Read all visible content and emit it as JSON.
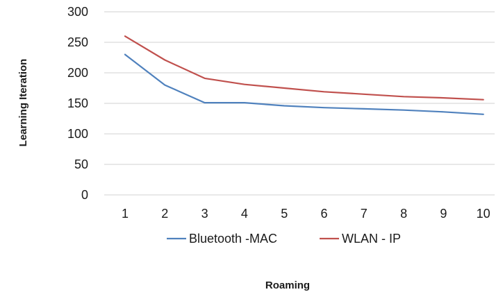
{
  "chart_data": {
    "type": "line",
    "title": "",
    "xlabel": "Roaming",
    "ylabel": "Learning Iteration",
    "x": [
      1,
      2,
      3,
      4,
      5,
      6,
      7,
      8,
      9,
      10
    ],
    "ylim": [
      0,
      300
    ],
    "yticks": [
      0,
      50,
      100,
      150,
      200,
      250,
      300
    ],
    "grid": "horizontal",
    "legend_position": "bottom",
    "series": [
      {
        "name": "Bluetooth -MAC",
        "color": "#4f81bd",
        "values": [
          230,
          180,
          151,
          151,
          146,
          143,
          141,
          139,
          136,
          132
        ]
      },
      {
        "name": "WLAN - IP",
        "color": "#c0504d",
        "values": [
          260,
          221,
          191,
          181,
          175,
          169,
          165,
          161,
          159,
          156
        ]
      }
    ]
  }
}
